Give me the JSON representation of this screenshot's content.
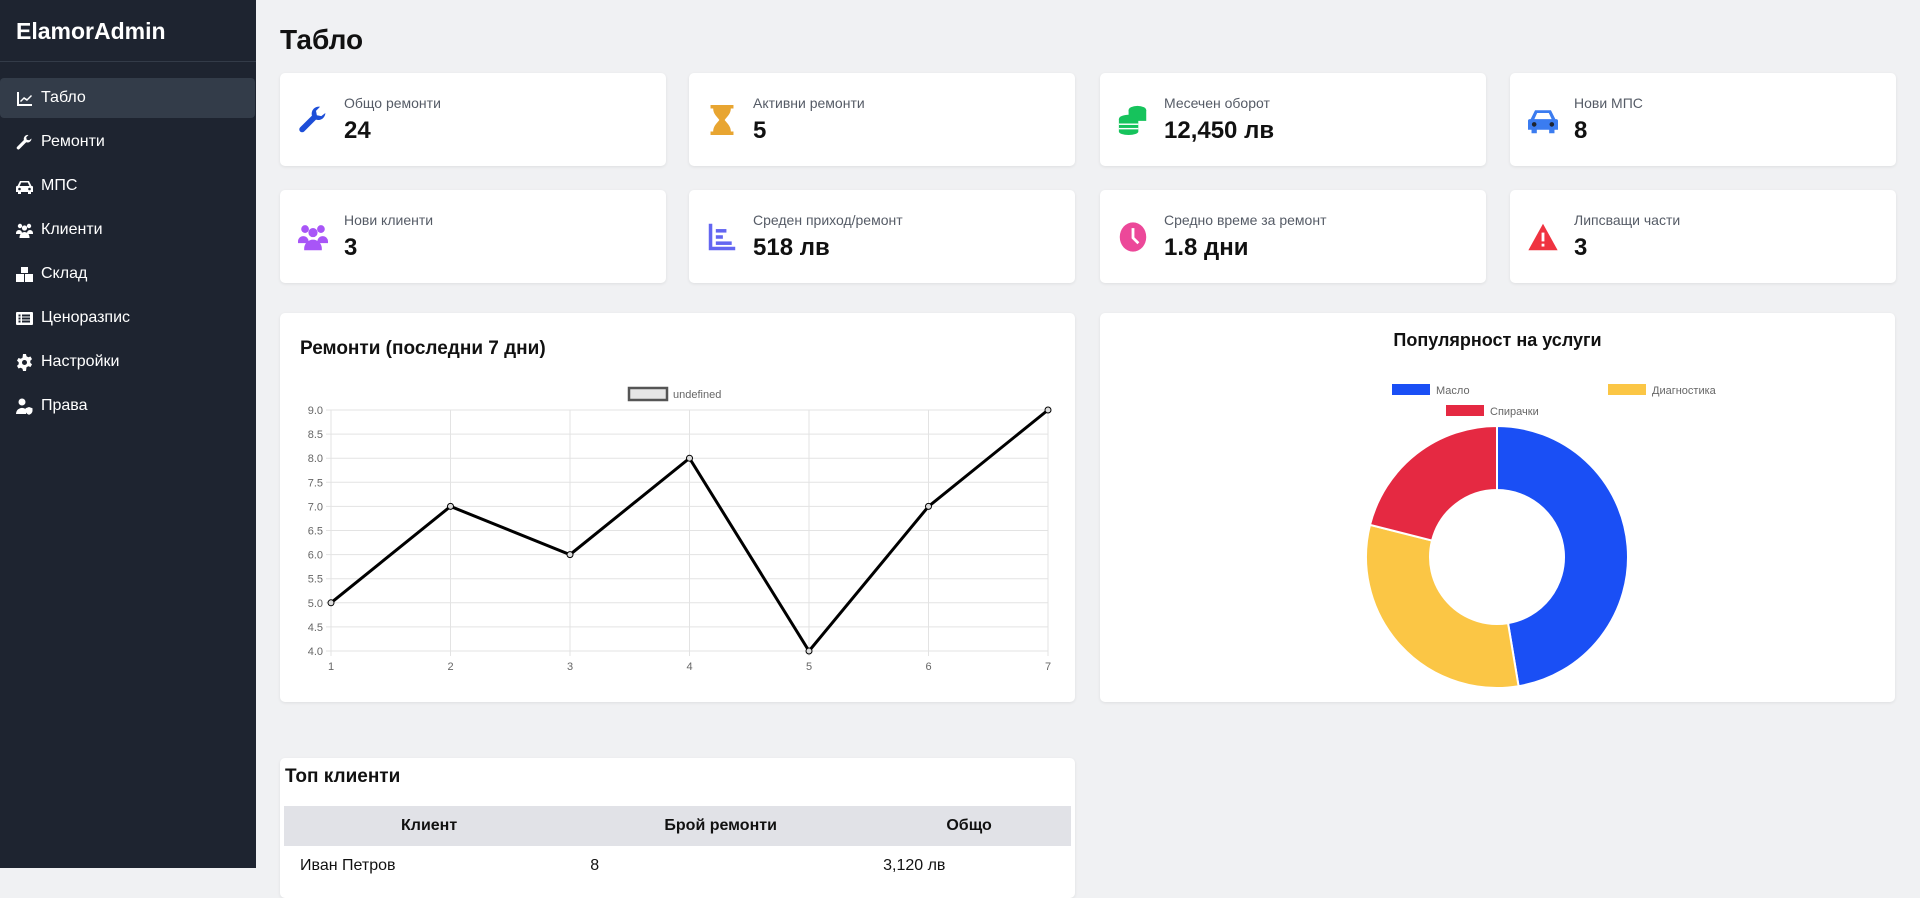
{
  "brand": "ElamorAdmin",
  "nav": [
    {
      "label": "Табло",
      "icon": "chart-line-icon",
      "active": true
    },
    {
      "label": "Ремонти",
      "icon": "wrench-icon"
    },
    {
      "label": "МПС",
      "icon": "car-icon"
    },
    {
      "label": "Клиенти",
      "icon": "users-icon"
    },
    {
      "label": "Склад",
      "icon": "boxes-icon"
    },
    {
      "label": "Ценоразпис",
      "icon": "list-icon"
    },
    {
      "label": "Настройки",
      "icon": "gear-icon"
    },
    {
      "label": "Права",
      "icon": "user-shield-icon"
    }
  ],
  "page_title": "Табло",
  "stats": [
    {
      "label": "Общо ремонти",
      "value": "24",
      "icon": "wrench-icon",
      "color": "#1d4ed8"
    },
    {
      "label": "Активни ремонти",
      "value": "5",
      "icon": "hourglass-icon",
      "color": "#e8a531"
    },
    {
      "label": "Месечен оборот",
      "value": "12,450 лв",
      "icon": "coins-icon",
      "color": "#16c35c"
    },
    {
      "label": "Нови МПС",
      "value": "8",
      "icon": "car-icon",
      "color": "#3b7cf0"
    },
    {
      "label": "Нови клиенти",
      "value": "3",
      "icon": "users-icon",
      "color": "#a855f7"
    },
    {
      "label": "Среден приход/ремонт",
      "value": "518 лв",
      "icon": "chart-bar-icon",
      "color": "#6366f1"
    },
    {
      "label": "Средно време за ремонт",
      "value": "1.8 дни",
      "icon": "clock-icon",
      "color": "#ec4899"
    },
    {
      "label": "Липсващи части",
      "value": "3",
      "icon": "warning-icon",
      "color": "#ef3340"
    }
  ],
  "chart_data": [
    {
      "type": "line",
      "title": "Ремонти (последни 7 дни)",
      "legend": "undefined",
      "x": [
        1,
        2,
        3,
        4,
        5,
        6,
        7
      ],
      "values": [
        5,
        7,
        6,
        8,
        4,
        7,
        9
      ],
      "ylim": [
        4,
        9
      ],
      "yticks": [
        "4.0",
        "4.5",
        "5.0",
        "5.5",
        "6.0",
        "6.5",
        "7.0",
        "7.5",
        "8.0",
        "8.5",
        "9.0"
      ],
      "grid": true,
      "legend_position": "top",
      "color": "#000000"
    },
    {
      "type": "pie",
      "donut": true,
      "title": "Популярност на услуги",
      "legend_position": "top",
      "labels": [
        "Масло",
        "Диагностика",
        "Спирачки"
      ],
      "values": [
        45,
        30,
        20
      ],
      "colors": [
        "#1a4ff5",
        "#fbc645",
        "#e52942"
      ]
    }
  ],
  "top_clients": {
    "title": "Топ клиенти",
    "headers": [
      "Клиент",
      "Брой ремонти",
      "Общо"
    ],
    "rows": [
      [
        "Иван Петров",
        "8",
        "3,120 лв"
      ]
    ]
  }
}
